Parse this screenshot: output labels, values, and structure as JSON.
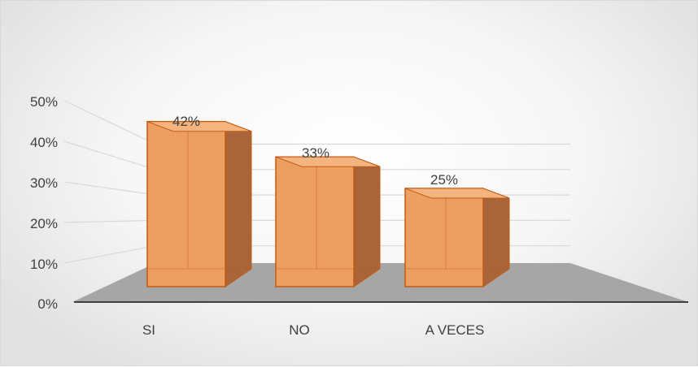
{
  "chart_data": {
    "type": "bar",
    "style": "3d-column",
    "categories": [
      "SI",
      "NO",
      "A VECES"
    ],
    "values": [
      42,
      33,
      25
    ],
    "data_labels": [
      "42%",
      "33%",
      "25%"
    ],
    "ylim": [
      0,
      50
    ],
    "yticks": [
      "0%",
      "10%",
      "20%",
      "30%",
      "40%",
      "50%"
    ],
    "grid": true,
    "legend": "none",
    "colors": {
      "bar_front": "#ED9F61",
      "bar_side": "#A8653A",
      "bar_top": "#F4B47F",
      "bar_edge": "#C55A11",
      "floor": "#A6A6A6",
      "axis": "#404040",
      "grid": "#d9d9d9"
    }
  }
}
